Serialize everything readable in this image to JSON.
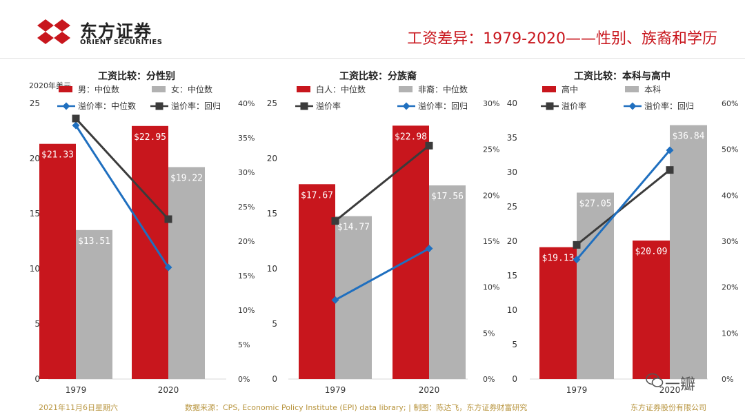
{
  "header": {
    "logo_cn": "东方证券",
    "logo_en": "ORIENT SECURITIES",
    "title": "工资差异：1979-2020——性别、族裔和学历"
  },
  "footer": {
    "date": "2021年11月6日星期六",
    "source": "数据来源：CPS, Economic Policy Institute (EPI) data library; | 制图：陈达飞，东方证券财富研究",
    "company": "东方证券股份有限公司"
  },
  "watermark": {
    "text": "一瓣"
  },
  "colors": {
    "red": "#c8161d",
    "gray": "#b2b2b2",
    "blue": "#1f6fbf",
    "dark": "#3b3b3b",
    "accent": "#c8161d"
  },
  "chart_data": [
    {
      "type": "bar",
      "title": "工资比较：分性别",
      "unit_label": "2020年美元",
      "categories": [
        "1979",
        "2020"
      ],
      "ylim": [
        0,
        25
      ],
      "yticks": [
        "0",
        "5",
        "10",
        "15",
        "20",
        "25"
      ],
      "y2lim": [
        0,
        40
      ],
      "y2ticks": [
        "0%",
        "5%",
        "10%",
        "15%",
        "20%",
        "25%",
        "30%",
        "35%",
        "40%"
      ],
      "legend": [
        "男：中位数",
        "女：中位数",
        "溢价率：中位数",
        "溢价率：回归"
      ],
      "series": [
        {
          "name": "男：中位数",
          "values": [
            21.33,
            22.95
          ],
          "labels": [
            "$21.33",
            "$22.95"
          ]
        },
        {
          "name": "女：中位数",
          "values": [
            13.51,
            19.22
          ],
          "labels": [
            "$13.51",
            "$19.22"
          ]
        }
      ],
      "lines": [
        {
          "name": "溢价率：中位数",
          "values": [
            36.8,
            16.2
          ]
        },
        {
          "name": "溢价率：回归",
          "values": [
            37.8,
            23.2
          ]
        }
      ]
    },
    {
      "type": "bar",
      "title": "工资比较：分族裔",
      "unit_label": "",
      "categories": [
        "1979",
        "2020"
      ],
      "ylim": [
        0,
        25
      ],
      "yticks": [
        "0",
        "5",
        "10",
        "15",
        "20",
        "25"
      ],
      "y2lim": [
        0,
        30
      ],
      "y2ticks": [
        "0%",
        "5%",
        "10%",
        "15%",
        "20%",
        "25%",
        "30%"
      ],
      "legend": [
        "白人：中位数",
        "非裔：中位数",
        "溢价率",
        "溢价率：回归"
      ],
      "series": [
        {
          "name": "白人：中位数",
          "values": [
            17.67,
            22.98
          ],
          "labels": [
            "$17.67",
            "$22.98"
          ]
        },
        {
          "name": "非裔：中位数",
          "values": [
            14.77,
            17.56
          ],
          "labels": [
            "$14.77",
            "$17.56"
          ]
        }
      ],
      "lines": [
        {
          "name": "溢价率",
          "values": [
            17.2,
            25.4
          ]
        },
        {
          "name": "溢价率：回归",
          "values": [
            8.6,
            14.2
          ]
        }
      ]
    },
    {
      "type": "bar",
      "title": "工资比较：本科与高中",
      "unit_label": "",
      "categories": [
        "1979",
        "2020"
      ],
      "ylim": [
        0,
        40
      ],
      "yticks": [
        "0",
        "5",
        "10",
        "15",
        "20",
        "25",
        "30",
        "35",
        "40"
      ],
      "y2lim": [
        0,
        60
      ],
      "y2ticks": [
        "0%",
        "10%",
        "20%",
        "30%",
        "40%",
        "50%",
        "60%"
      ],
      "legend": [
        "高中",
        "本科",
        "溢价率",
        "溢价率：回归"
      ],
      "series": [
        {
          "name": "高中",
          "values": [
            19.13,
            20.09
          ],
          "labels": [
            "$19.13",
            "$20.09"
          ]
        },
        {
          "name": "本科",
          "values": [
            27.05,
            36.84
          ],
          "labels": [
            "$27.05",
            "$36.84"
          ]
        }
      ],
      "lines": [
        {
          "name": "溢价率",
          "values": [
            29.2,
            45.5
          ]
        },
        {
          "name": "溢价率：回归",
          "values": [
            26.0,
            49.8
          ]
        }
      ]
    }
  ]
}
